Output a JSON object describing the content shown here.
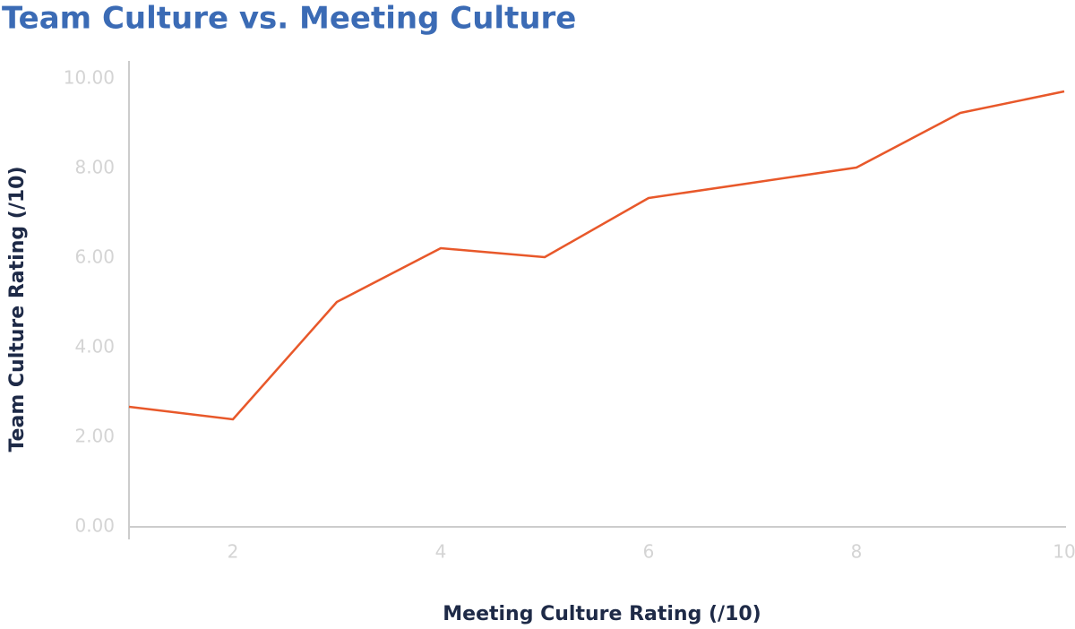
{
  "chart_data": {
    "type": "line",
    "title": "Team Culture vs. Meeting Culture",
    "x_label": "Meeting Culture Rating (/10)",
    "y_label": "Team Culture Rating (/10)",
    "x": [
      1,
      2,
      3,
      4,
      5,
      6,
      7,
      8,
      9,
      10
    ],
    "series": [
      {
        "name": "Team Culture Rating",
        "color": "#e8582a",
        "values": [
          2.68,
          2.4,
          5.02,
          6.22,
          6.02,
          7.34,
          7.68,
          8.02,
          9.24,
          9.72
        ]
      }
    ],
    "xlim": [
      1,
      10
    ],
    "xticks": [
      2,
      4,
      6,
      8,
      10
    ],
    "ylim": [
      0,
      10
    ],
    "yticks": [
      {
        "value": 0,
        "label": "0.00"
      },
      {
        "value": 2,
        "label": "2.00"
      },
      {
        "value": 4,
        "label": "4.00"
      },
      {
        "value": 6,
        "label": "6.00"
      },
      {
        "value": 8,
        "label": "8.00"
      },
      {
        "value": 10,
        "label": "10.00"
      }
    ],
    "grid": false
  }
}
